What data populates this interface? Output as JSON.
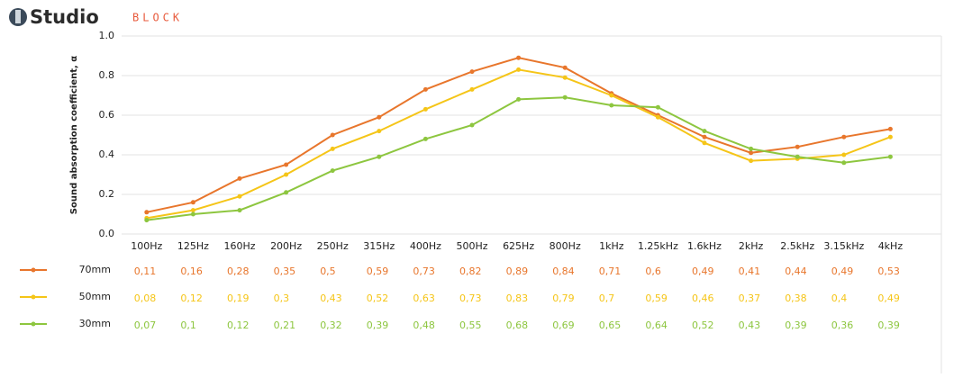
{
  "logo": {
    "name": "Studio",
    "brand": "BLOCK"
  },
  "chart_data": {
    "type": "line",
    "y_label": "Sound absorption coefficient, α",
    "categories": [
      "100Hz",
      "125Hz",
      "160Hz",
      "200Hz",
      "250Hz",
      "315Hz",
      "400Hz",
      "500Hz",
      "625Hz",
      "800Hz",
      "1kHz",
      "1.25kHz",
      "1.6kHz",
      "2kHz",
      "2.5kHz",
      "3.15kHz",
      "4kHz"
    ],
    "ylim": [
      0,
      1
    ],
    "yticks": [
      {
        "value": 0,
        "label": "0.0"
      },
      0.2,
      0.4,
      0.6,
      0.8,
      {
        "value": 1,
        "label": "1.0"
      }
    ],
    "grid": true,
    "series": [
      {
        "name": "70mm",
        "color": "#e8762c",
        "values": [
          0.11,
          0.16,
          0.28,
          0.35,
          0.5,
          0.59,
          0.73,
          0.82,
          0.89,
          0.84,
          0.71,
          0.6,
          0.49,
          0.41,
          0.44,
          0.49,
          0.53
        ],
        "value_labels": [
          "0,11",
          "0,16",
          "0,28",
          "0,35",
          "0,5",
          "0,59",
          "0,73",
          "0,82",
          "0,89",
          "0,84",
          "0,71",
          "0,6",
          "0,49",
          "0,41",
          "0,44",
          "0,49",
          "0,53"
        ]
      },
      {
        "name": "50mm",
        "color": "#f5c518",
        "values": [
          0.08,
          0.12,
          0.19,
          0.3,
          0.43,
          0.52,
          0.63,
          0.73,
          0.83,
          0.79,
          0.7,
          0.59,
          0.46,
          0.37,
          0.38,
          0.4,
          0.49
        ],
        "value_labels": [
          "0,08",
          "0,12",
          "0,19",
          "0,3",
          "0,43",
          "0,52",
          "0,63",
          "0,73",
          "0,83",
          "0,79",
          "0,7",
          "0,59",
          "0,46",
          "0,37",
          "0,38",
          "0,4",
          "0,49"
        ]
      },
      {
        "name": "30mm",
        "color": "#8dc63f",
        "values": [
          0.07,
          0.1,
          0.12,
          0.21,
          0.32,
          0.39,
          0.48,
          0.55,
          0.68,
          0.69,
          0.65,
          0.64,
          0.52,
          0.43,
          0.39,
          0.36,
          0.39
        ],
        "value_labels": [
          "0,07",
          "0,1",
          "0,12",
          "0,21",
          "0,32",
          "0,39",
          "0,48",
          "0,55",
          "0,68",
          "0,69",
          "0,65",
          "0,64",
          "0,52",
          "0,43",
          "0,39",
          "0,36",
          "0,39"
        ]
      }
    ]
  }
}
